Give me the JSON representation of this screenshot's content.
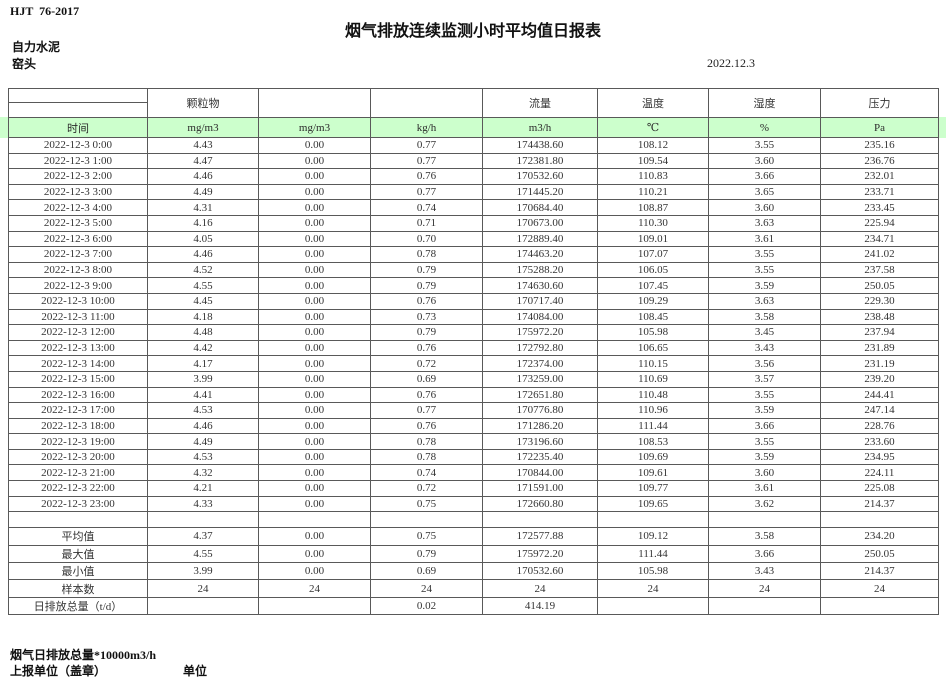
{
  "page": {
    "doc_code": "HJT  76-2017",
    "title": "烟气排放连续监测小时平均值日报表",
    "company": "自力水泥",
    "location": "窑头",
    "date": "2022.12.3"
  },
  "colors": {
    "highlight_green": "#ccffcc",
    "grid_line": "#595959"
  },
  "table": {
    "header_groups": [
      "",
      "颗粒物",
      "",
      "",
      "流量",
      "温度",
      "湿度",
      "压力"
    ],
    "units_row": [
      "时间",
      "mg/m3",
      "mg/m3",
      "kg/h",
      "m3/h",
      "℃",
      "%",
      "Pa"
    ],
    "rows": [
      [
        "2022-12-3 0:00",
        "4.43",
        "0.00",
        "0.77",
        "174438.60",
        "108.12",
        "3.55",
        "235.16"
      ],
      [
        "2022-12-3 1:00",
        "4.47",
        "0.00",
        "0.77",
        "172381.80",
        "109.54",
        "3.60",
        "236.76"
      ],
      [
        "2022-12-3 2:00",
        "4.46",
        "0.00",
        "0.76",
        "170532.60",
        "110.83",
        "3.66",
        "232.01"
      ],
      [
        "2022-12-3 3:00",
        "4.49",
        "0.00",
        "0.77",
        "171445.20",
        "110.21",
        "3.65",
        "233.71"
      ],
      [
        "2022-12-3 4:00",
        "4.31",
        "0.00",
        "0.74",
        "170684.40",
        "108.87",
        "3.60",
        "233.45"
      ],
      [
        "2022-12-3 5:00",
        "4.16",
        "0.00",
        "0.71",
        "170673.00",
        "110.30",
        "3.63",
        "225.94"
      ],
      [
        "2022-12-3 6:00",
        "4.05",
        "0.00",
        "0.70",
        "172889.40",
        "109.01",
        "3.61",
        "234.71"
      ],
      [
        "2022-12-3 7:00",
        "4.46",
        "0.00",
        "0.78",
        "174463.20",
        "107.07",
        "3.55",
        "241.02"
      ],
      [
        "2022-12-3 8:00",
        "4.52",
        "0.00",
        "0.79",
        "175288.20",
        "106.05",
        "3.55",
        "237.58"
      ],
      [
        "2022-12-3 9:00",
        "4.55",
        "0.00",
        "0.79",
        "174630.60",
        "107.45",
        "3.59",
        "250.05"
      ],
      [
        "2022-12-3 10:00",
        "4.45",
        "0.00",
        "0.76",
        "170717.40",
        "109.29",
        "3.63",
        "229.30"
      ],
      [
        "2022-12-3 11:00",
        "4.18",
        "0.00",
        "0.73",
        "174084.00",
        "108.45",
        "3.58",
        "238.48"
      ],
      [
        "2022-12-3 12:00",
        "4.48",
        "0.00",
        "0.79",
        "175972.20",
        "105.98",
        "3.45",
        "237.94"
      ],
      [
        "2022-12-3 13:00",
        "4.42",
        "0.00",
        "0.76",
        "172792.80",
        "106.65",
        "3.43",
        "231.89"
      ],
      [
        "2022-12-3 14:00",
        "4.17",
        "0.00",
        "0.72",
        "172374.00",
        "110.15",
        "3.56",
        "231.19"
      ],
      [
        "2022-12-3 15:00",
        "3.99",
        "0.00",
        "0.69",
        "173259.00",
        "110.69",
        "3.57",
        "239.20"
      ],
      [
        "2022-12-3 16:00",
        "4.41",
        "0.00",
        "0.76",
        "172651.80",
        "110.48",
        "3.55",
        "244.41"
      ],
      [
        "2022-12-3 17:00",
        "4.53",
        "0.00",
        "0.77",
        "170776.80",
        "110.96",
        "3.59",
        "247.14"
      ],
      [
        "2022-12-3 18:00",
        "4.46",
        "0.00",
        "0.76",
        "171286.20",
        "111.44",
        "3.66",
        "228.76"
      ],
      [
        "2022-12-3 19:00",
        "4.49",
        "0.00",
        "0.78",
        "173196.60",
        "108.53",
        "3.55",
        "233.60"
      ],
      [
        "2022-12-3 20:00",
        "4.53",
        "0.00",
        "0.78",
        "172235.40",
        "109.69",
        "3.59",
        "234.95"
      ],
      [
        "2022-12-3 21:00",
        "4.32",
        "0.00",
        "0.74",
        "170844.00",
        "109.61",
        "3.60",
        "224.11"
      ],
      [
        "2022-12-3 22:00",
        "4.21",
        "0.00",
        "0.72",
        "171591.00",
        "109.77",
        "3.61",
        "225.08"
      ],
      [
        "2022-12-3 23:00",
        "4.33",
        "0.00",
        "0.75",
        "172660.80",
        "109.65",
        "3.62",
        "214.37"
      ]
    ],
    "summary": [
      [
        "平均值",
        "4.37",
        "0.00",
        "0.75",
        "172577.88",
        "109.12",
        "3.58",
        "234.20"
      ],
      [
        "最大值",
        "4.55",
        "0.00",
        "0.79",
        "175972.20",
        "111.44",
        "3.66",
        "250.05"
      ],
      [
        "最小值",
        "3.99",
        "0.00",
        "0.69",
        "170532.60",
        "105.98",
        "3.43",
        "214.37"
      ],
      [
        "样本数",
        "24",
        "24",
        "24",
        "24",
        "24",
        "24",
        "24"
      ],
      [
        "日排放总量（t/d）",
        "",
        "",
        "0.02",
        "414.19",
        "",
        "",
        ""
      ]
    ]
  },
  "footer": {
    "note": "烟气日排放总量*10000m3/h",
    "report_unit": "上报单位（盖章）",
    "unit_label": "单位"
  }
}
